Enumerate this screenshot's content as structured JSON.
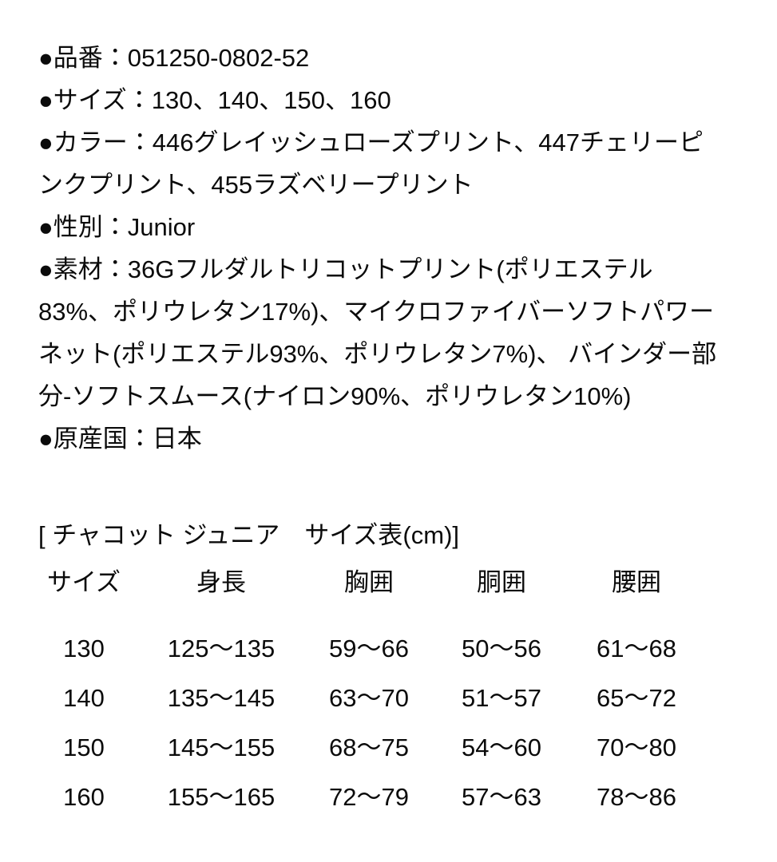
{
  "page": {
    "background_color": "#ffffff",
    "text_color": "#0b0b0b"
  },
  "product_details": {
    "lines": [
      "●品番：051250-0802-52",
      "●サイズ：130、140、150、160",
      "●カラー：446グレイッシュローズプリント、447チェリーピ",
      "ンクプリント、455ラズベリープリント",
      "●性別：Junior",
      "●素材：36Gフルダルトリコットプリント(ポリエステル",
      "83%、ポリウレタン17%)、マイクロファイバーソフトパワー",
      "ネット(ポリエステル93%、ポリウレタン7%)、 バインダー部",
      "分-ソフトスムース(ナイロン90%、ポリウレタン10%)",
      "●原産国：日本"
    ]
  },
  "size_table": {
    "title": "[ チャコット ジュニア　サイズ表(cm)]",
    "headers": [
      "サイズ",
      "身長",
      "胸囲",
      "胴囲",
      "腰囲"
    ],
    "rows": [
      [
        "130",
        "125〜135",
        "59〜66",
        "50〜56",
        "61〜68"
      ],
      [
        "140",
        "135〜145",
        "63〜70",
        "51〜57",
        "65〜72"
      ],
      [
        "150",
        "145〜155",
        "68〜75",
        "54〜60",
        "70〜80"
      ],
      [
        "160",
        "155〜165",
        "72〜79",
        "57〜63",
        "78〜86"
      ]
    ]
  }
}
